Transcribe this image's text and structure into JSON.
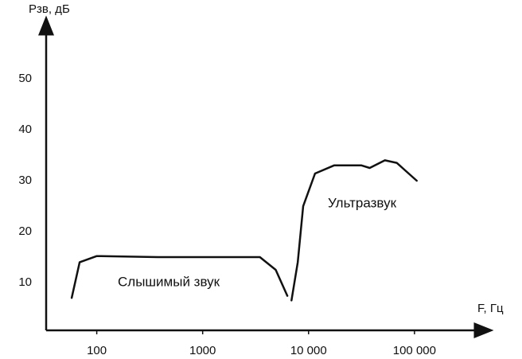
{
  "chart_data": {
    "type": "line",
    "xscale": "log",
    "y_label": "Pзв, дБ",
    "x_label": "F, Гц",
    "annotations": [
      "Слышимый звук",
      "Ультразвук"
    ],
    "xlim": [
      30,
      400000
    ],
    "ylim": [
      0,
      60
    ],
    "xticks": [
      100,
      1000,
      {
        "value": 10000,
        "label": "10 000"
      },
      {
        "value": 100000,
        "label": "100 000"
      }
    ],
    "yticks": [
      10,
      20,
      30,
      40,
      50
    ],
    "grid": false,
    "x": [
      58,
      69,
      100,
      378,
      3470,
      4900,
      6300,
      null,
      6900,
      7900,
      8900,
      11500,
      17400,
      31600,
      37800,
      52600,
      68000,
      105000
    ],
    "series": [
      {
        "color": "#111111",
        "values": [
          7,
          14,
          15.2,
          15,
          15,
          12.5,
          7.4,
          null,
          6.5,
          14,
          25,
          31.4,
          33,
          33,
          32.5,
          34,
          33.5,
          30
        ]
      }
    ]
  }
}
